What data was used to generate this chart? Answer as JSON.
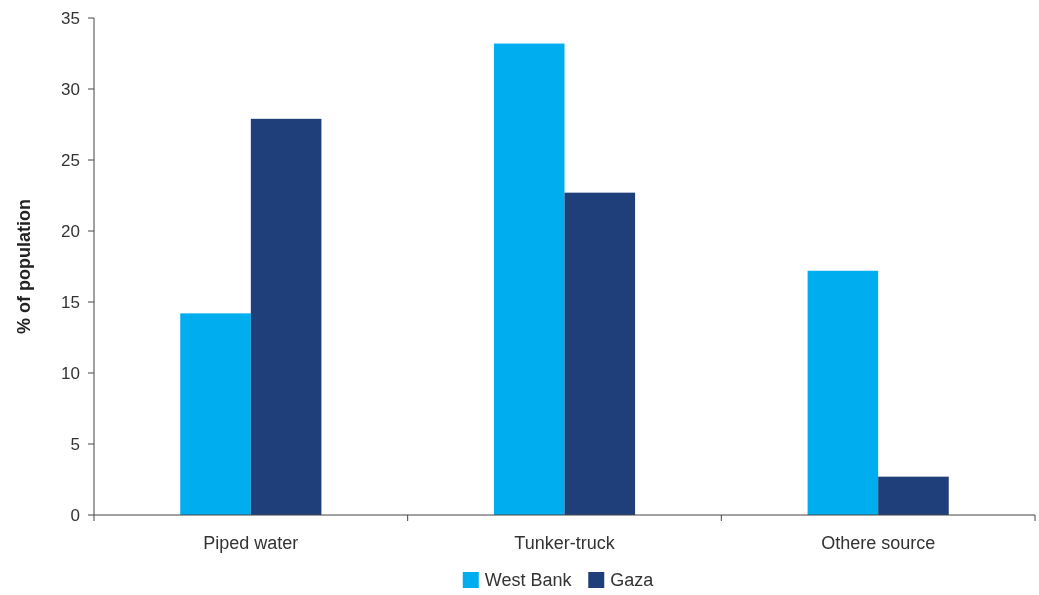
{
  "chart_data": {
    "type": "bar",
    "ylabel": "% of population",
    "categories": [
      "Piped water",
      "Tunker-truck",
      "Othere source"
    ],
    "series": [
      {
        "name": "West Bank",
        "color": "#00aeef",
        "values": [
          14.2,
          33.2,
          17.2
        ]
      },
      {
        "name": "Gaza",
        "color": "#1f3f7a",
        "values": [
          27.9,
          22.7,
          2.7
        ]
      }
    ],
    "ylim": [
      0,
      35
    ],
    "yticks": [
      0,
      5,
      10,
      15,
      20,
      25,
      30,
      35
    ],
    "grid": false,
    "legend": "bottom"
  }
}
